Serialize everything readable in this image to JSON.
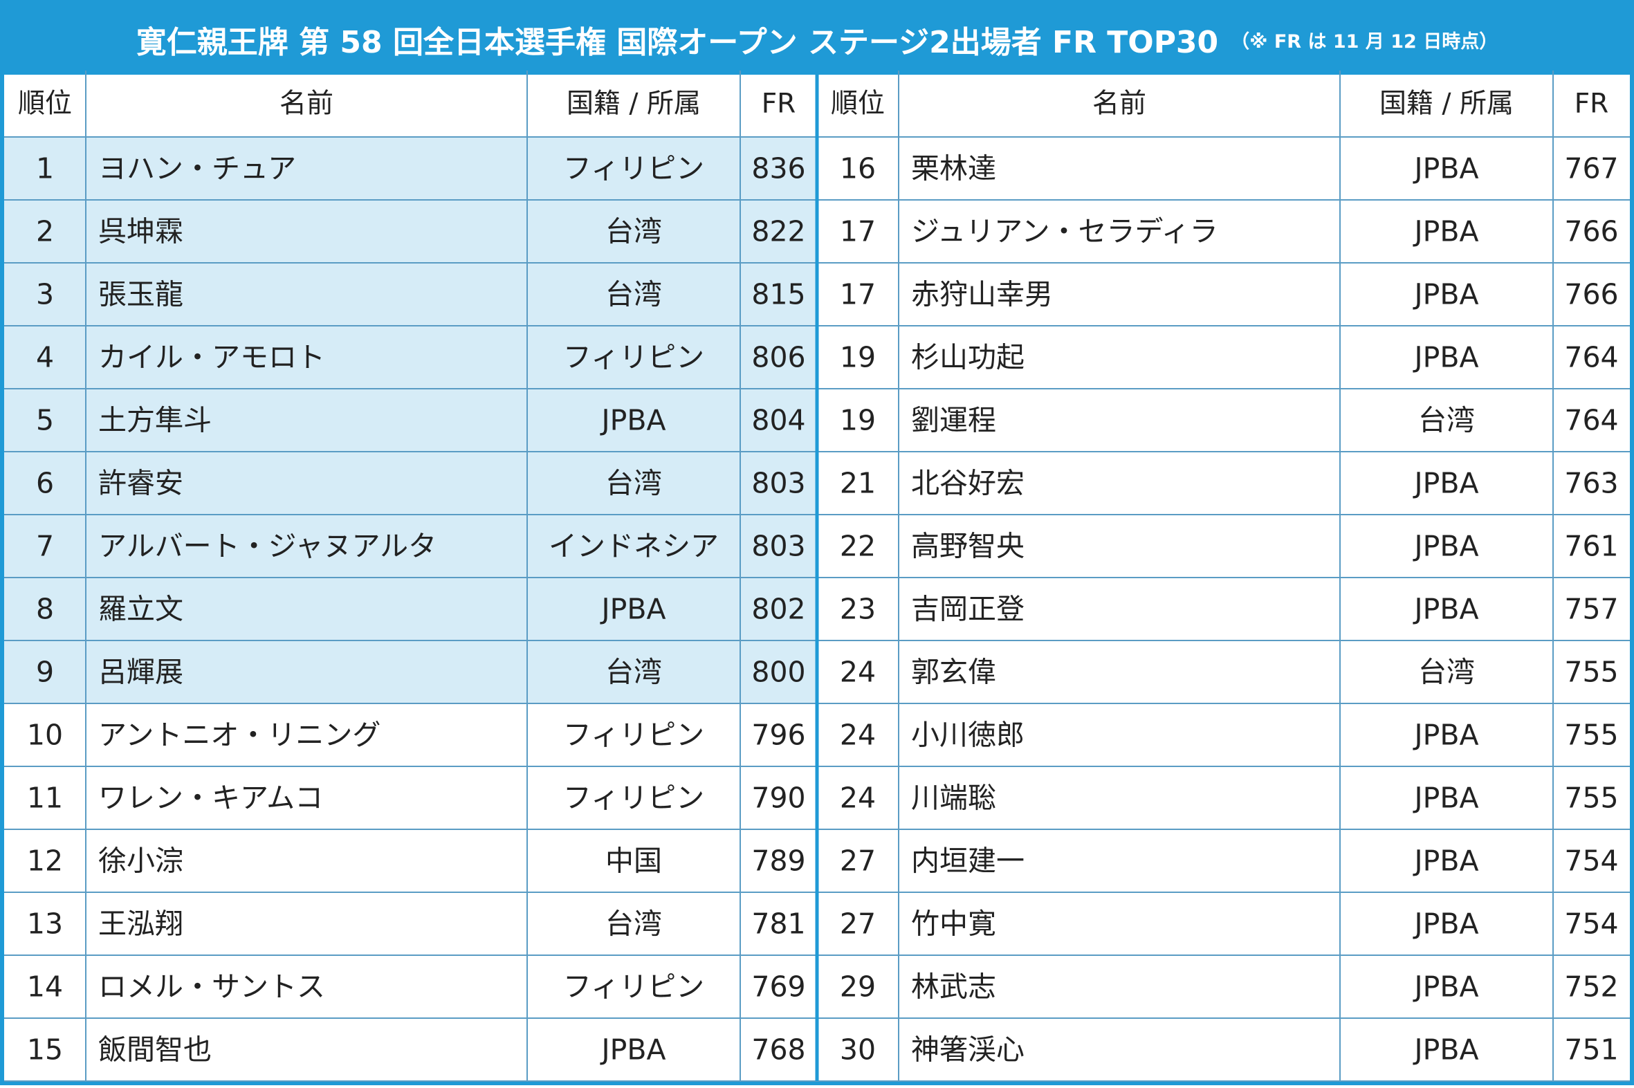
{
  "title": "寛仁親王牌 第 58 回全日本選手権 国際オープン ステージ2出場者 FR TOP30",
  "title_note": "（※ FR は 11 月 12 日時点）",
  "headers": {
    "rank": "順位",
    "name": "名前",
    "affiliation": "国籍 / 所属",
    "fr": "FR"
  },
  "colors": {
    "frame": "#1f9ad6",
    "highlight": "#d6ecf7",
    "grid": "#5a9cc4",
    "text": "#222222"
  },
  "highlighted_ranks_note": "Ranks 1-9 shaded light blue",
  "chart_data": {
    "type": "table",
    "columns": [
      "順位",
      "名前",
      "国籍 / 所属",
      "FR"
    ],
    "rows": [
      {
        "rank": "1",
        "name": "ヨハン・チュア",
        "affiliation": "フィリピン",
        "fr": 836,
        "highlight": true
      },
      {
        "rank": "2",
        "name": "呉坤霖",
        "affiliation": "台湾",
        "fr": 822,
        "highlight": true
      },
      {
        "rank": "3",
        "name": "張玉龍",
        "affiliation": "台湾",
        "fr": 815,
        "highlight": true
      },
      {
        "rank": "4",
        "name": "カイル・アモロト",
        "affiliation": "フィリピン",
        "fr": 806,
        "highlight": true
      },
      {
        "rank": "5",
        "name": "土方隼斗",
        "affiliation": "JPBA",
        "fr": 804,
        "highlight": true
      },
      {
        "rank": "6",
        "name": "許睿安",
        "affiliation": "台湾",
        "fr": 803,
        "highlight": true
      },
      {
        "rank": "7",
        "name": "アルバート・ジャヌアルタ",
        "affiliation": "インドネシア",
        "fr": 803,
        "highlight": true
      },
      {
        "rank": "8",
        "name": "羅立文",
        "affiliation": "JPBA",
        "fr": 802,
        "highlight": true
      },
      {
        "rank": "9",
        "name": "呂輝展",
        "affiliation": "台湾",
        "fr": 800,
        "highlight": true
      },
      {
        "rank": "10",
        "name": "アントニオ・リニング",
        "affiliation": "フィリピン",
        "fr": 796,
        "highlight": false
      },
      {
        "rank": "11",
        "name": "ワレン・キアムコ",
        "affiliation": "フィリピン",
        "fr": 790,
        "highlight": false
      },
      {
        "rank": "12",
        "name": "徐小淙",
        "affiliation": "中国",
        "fr": 789,
        "highlight": false
      },
      {
        "rank": "13",
        "name": "王泓翔",
        "affiliation": "台湾",
        "fr": 781,
        "highlight": false
      },
      {
        "rank": "14",
        "name": "ロメル・サントス",
        "affiliation": "フィリピン",
        "fr": 769,
        "highlight": false
      },
      {
        "rank": "15",
        "name": "飯間智也",
        "affiliation": "JPBA",
        "fr": 768,
        "highlight": false
      },
      {
        "rank": "16",
        "name": "栗林達",
        "affiliation": "JPBA",
        "fr": 767,
        "highlight": false
      },
      {
        "rank": "17",
        "name": "ジュリアン・セラディラ",
        "affiliation": "JPBA",
        "fr": 766,
        "highlight": false
      },
      {
        "rank": "17",
        "name": "赤狩山幸男",
        "affiliation": "JPBA",
        "fr": 766,
        "highlight": false
      },
      {
        "rank": "19",
        "name": "杉山功起",
        "affiliation": "JPBA",
        "fr": 764,
        "highlight": false
      },
      {
        "rank": "19",
        "name": "劉運程",
        "affiliation": "台湾",
        "fr": 764,
        "highlight": false
      },
      {
        "rank": "21",
        "name": "北谷好宏",
        "affiliation": "JPBA",
        "fr": 763,
        "highlight": false
      },
      {
        "rank": "22",
        "name": "高野智央",
        "affiliation": "JPBA",
        "fr": 761,
        "highlight": false
      },
      {
        "rank": "23",
        "name": "吉岡正登",
        "affiliation": "JPBA",
        "fr": 757,
        "highlight": false
      },
      {
        "rank": "24",
        "name": "郭玄偉",
        "affiliation": "台湾",
        "fr": 755,
        "highlight": false
      },
      {
        "rank": "24",
        "name": "小川徳郎",
        "affiliation": "JPBA",
        "fr": 755,
        "highlight": false
      },
      {
        "rank": "24",
        "name": "川端聡",
        "affiliation": "JPBA",
        "fr": 755,
        "highlight": false
      },
      {
        "rank": "27",
        "name": "内垣建一",
        "affiliation": "JPBA",
        "fr": 754,
        "highlight": false
      },
      {
        "rank": "27",
        "name": "竹中寛",
        "affiliation": "JPBA",
        "fr": 754,
        "highlight": false
      },
      {
        "rank": "29",
        "name": "林武志",
        "affiliation": "JPBA",
        "fr": 752,
        "highlight": false
      },
      {
        "rank": "30",
        "name": "神箸渓心",
        "affiliation": "JPBA",
        "fr": 751,
        "highlight": false
      }
    ]
  }
}
